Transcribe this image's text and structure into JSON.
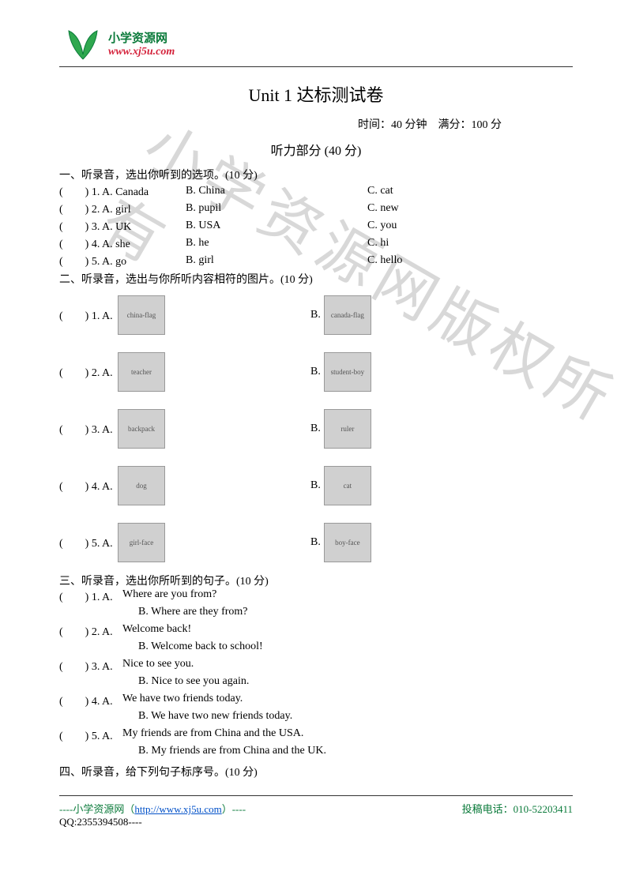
{
  "header": {
    "logo_name": "leaf-logo",
    "chinese": "小学资源网",
    "url": "www.xj5u.com",
    "url_color": "#d4223b",
    "cn_color": "#0a7a3a"
  },
  "title": "Unit 1 达标测试卷",
  "meta": "时间：40 分钟　满分：100 分",
  "listening_heading": "听力部分 (40 分)",
  "watermark_text": "小学资源网版权所有",
  "section1": {
    "title": "一、听录音，选出你听到的选项。(10 分)",
    "rows": [
      {
        "num": "(　　) 1. A. Canada",
        "b": "B. China",
        "c": "C. cat"
      },
      {
        "num": "(　　) 2. A. girl",
        "b": "B. pupil",
        "c": "C. new"
      },
      {
        "num": "(　　) 3. A. UK",
        "b": "B. USA",
        "c": "C. you"
      },
      {
        "num": "(　　) 4. A. she",
        "b": "B. he",
        "c": "C. hi"
      },
      {
        "num": "(　　) 5. A. go",
        "b": "B. girl",
        "c": "C. hello"
      }
    ]
  },
  "section2": {
    "title": "二、听录音，选出与你所听内容相符的图片。(10 分)",
    "rows": [
      {
        "num": "(　　) 1. A.",
        "img_a": "china-flag",
        "label_b": "B.",
        "img_b": "canada-flag"
      },
      {
        "num": "(　　) 2. A.",
        "img_a": "teacher",
        "label_b": "B.",
        "img_b": "student-boy"
      },
      {
        "num": "(　　) 3. A.",
        "img_a": "backpack",
        "label_b": "B.",
        "img_b": "ruler"
      },
      {
        "num": "(　　) 4. A.",
        "img_a": "dog",
        "label_b": "B.",
        "img_b": "cat"
      },
      {
        "num": "(　　) 5. A.",
        "img_a": "girl-face",
        "label_b": "B.",
        "img_b": "boy-face"
      }
    ]
  },
  "section3": {
    "title": "三、听录音，选出你所听到的句子。(10 分)",
    "items": [
      {
        "num": "(　　) 1. A.",
        "a": "Where are you from?",
        "b": "B. Where are they from?"
      },
      {
        "num": "(　　) 2. A.",
        "a": "Welcome back!",
        "b": "B. Welcome back to school!"
      },
      {
        "num": "(　　) 3. A.",
        "a": "Nice to see you.",
        "b": "B. Nice to see you again."
      },
      {
        "num": "(　　) 4. A.",
        "a": "We have two friends today.",
        "b": "B. We have two new friends today."
      },
      {
        "num": "(　　) 5. A.",
        "a": "My friends are from China and the USA.",
        "b": "B. My friends are from China and the UK."
      }
    ]
  },
  "section4": {
    "title": "四、听录音，给下列句子标序号。(10 分)"
  },
  "footer": {
    "left_prefix": "----小学资源网（",
    "link_text": "http://www.xj5u.com",
    "left_suffix": "）----",
    "right": "投稿电话：010-52203411",
    "qq": "QQ:2355394508----"
  },
  "colors": {
    "text": "#000000",
    "background": "#ffffff",
    "border": "#333333",
    "link": "#0050c8",
    "green": "#0a7a3a",
    "watermark": "#d8d8d8",
    "placeholder_bg": "#d0d0d0"
  },
  "typography": {
    "body_fontsize": 14,
    "title_fontsize": 22,
    "heading_fontsize": 16,
    "watermark_fontsize": 76
  }
}
